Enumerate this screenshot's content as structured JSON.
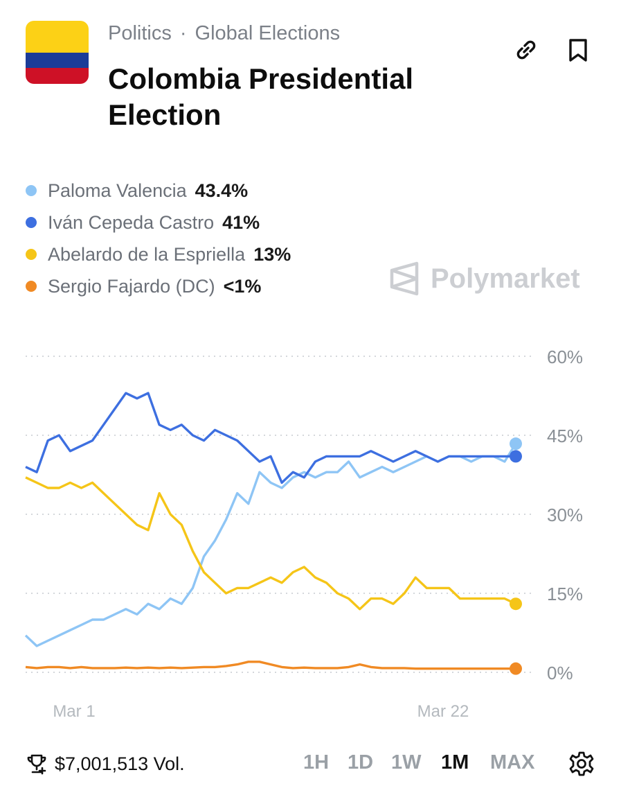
{
  "header": {
    "breadcrumb": [
      "Politics",
      "Global Elections"
    ],
    "title": "Colombia Presidential Election",
    "flag_colors": [
      "#FCD116",
      "#1B3C98",
      "#CE1126"
    ]
  },
  "legend": [
    {
      "name": "Paloma Valencia",
      "pct": "43.4%",
      "color": "#8EC5F5"
    },
    {
      "name": "Iván Cepeda Castro",
      "pct": "41%",
      "color": "#3D6FE0"
    },
    {
      "name": "Abelardo de la Espriella",
      "pct": "13%",
      "color": "#F5C518"
    },
    {
      "name": "Sergio Fajardo (DC)",
      "pct": "<1%",
      "color": "#F08A24"
    }
  ],
  "watermark": "Polymarket",
  "footer": {
    "volume": "$7,001,513 Vol.",
    "ranges": [
      "1H",
      "1D",
      "1W",
      "1M",
      "MAX"
    ],
    "active_range": "1M"
  },
  "chart_data": {
    "type": "line",
    "x_ticks": [
      "Mar 1",
      "Mar 22"
    ],
    "y_ticks": [
      "60%",
      "45%",
      "30%",
      "15%",
      "0%"
    ],
    "ylim": [
      0,
      60
    ],
    "grid": true,
    "series": [
      {
        "name": "Paloma Valencia",
        "color": "#8EC5F5",
        "values": [
          7,
          5,
          6,
          7,
          8,
          9,
          10,
          10,
          11,
          12,
          11,
          13,
          12,
          14,
          13,
          16,
          22,
          25,
          29,
          34,
          32,
          38,
          36,
          35,
          37,
          38,
          37,
          38,
          38,
          40,
          37,
          38,
          39,
          38,
          39,
          40,
          41,
          40,
          41,
          41,
          40,
          41,
          41,
          40,
          43.4
        ]
      },
      {
        "name": "Iván Cepeda Castro",
        "color": "#3D6FE0",
        "values": [
          39,
          38,
          44,
          45,
          42,
          43,
          44,
          47,
          50,
          53,
          52,
          53,
          47,
          46,
          47,
          45,
          44,
          46,
          45,
          44,
          42,
          40,
          41,
          36,
          38,
          37,
          40,
          41,
          41,
          41,
          41,
          42,
          41,
          40,
          41,
          42,
          41,
          40,
          41,
          41,
          41,
          41,
          41,
          41,
          41
        ]
      },
      {
        "name": "Abelardo de la Espriella",
        "color": "#F5C518",
        "values": [
          37,
          36,
          35,
          35,
          36,
          35,
          36,
          34,
          32,
          30,
          28,
          27,
          34,
          30,
          28,
          23,
          19,
          17,
          15,
          16,
          16,
          17,
          18,
          17,
          19,
          20,
          18,
          17,
          15,
          14,
          12,
          14,
          14,
          13,
          15,
          18,
          16,
          16,
          16,
          14,
          14,
          14,
          14,
          14,
          13
        ]
      },
      {
        "name": "Sergio Fajardo (DC)",
        "color": "#F08A24",
        "values": [
          1,
          0.8,
          1,
          1,
          0.8,
          1,
          0.8,
          0.8,
          0.8,
          0.9,
          0.8,
          0.9,
          0.8,
          0.9,
          0.8,
          0.9,
          1,
          1,
          1.2,
          1.5,
          2,
          2,
          1.5,
          1,
          0.8,
          0.9,
          0.8,
          0.8,
          0.8,
          1,
          1.5,
          1,
          0.8,
          0.8,
          0.8,
          0.7,
          0.7,
          0.7,
          0.7,
          0.7,
          0.7,
          0.7,
          0.7,
          0.7,
          0.7
        ]
      }
    ]
  }
}
